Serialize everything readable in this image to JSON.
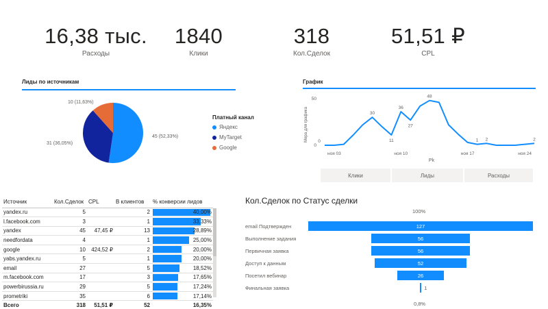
{
  "kpis": {
    "spend": {
      "value": "16,38 тыс.",
      "label": "Расходы"
    },
    "clicks": {
      "value": "1840",
      "label": "Клики"
    },
    "deals": {
      "value": "318",
      "label": "Кол.Сделок"
    },
    "cpl": {
      "value": "51,51 ₽",
      "label": "CPL"
    }
  },
  "pie_section": {
    "title": "Лиды по источникам",
    "legend_title": "Платный канал",
    "slices": [
      {
        "name": "Яндекс",
        "value": 45,
        "label": "45 (52,33%)",
        "color": "#118dff"
      },
      {
        "name": "MyTarget",
        "value": 31,
        "label": "31 (36,05%)",
        "color": "#12239e"
      },
      {
        "name": "Google",
        "value": 10,
        "label": "10 (11,63%)",
        "color": "#e66c37"
      }
    ]
  },
  "chart_section": {
    "title": "График",
    "buttons": [
      "Клики",
      "Лиды",
      "Расходы"
    ]
  },
  "chart_data": [
    {
      "type": "pie",
      "title": "Лиды по источникам",
      "legend_title": "Платный канал",
      "categories": [
        "Яндекс",
        "MyTarget",
        "Google"
      ],
      "values": [
        45,
        31,
        10
      ],
      "labels": [
        "45 (52,33%)",
        "31 (36,05%)",
        "10 (11,63%)"
      ],
      "colors": [
        "#118dff",
        "#12239e",
        "#e66c37"
      ],
      "legend": "right"
    },
    {
      "type": "line",
      "title": "График",
      "xlabel": "Рk",
      "ylabel": "Мера для графика",
      "x_ticks": [
        "ноя 03",
        "ноя 10",
        "ноя 17",
        "ноя 24"
      ],
      "y_ticks": [
        "0",
        "50"
      ],
      "ylim": [
        0,
        50
      ],
      "series": [
        {
          "values": [
            0,
            0,
            1,
            11,
            22,
            30,
            20,
            11,
            36,
            27,
            42,
            48,
            46,
            22,
            12,
            3,
            1,
            2,
            0,
            0,
            0,
            1,
            2
          ]
        }
      ],
      "data_labels": [
        {
          "index": 0,
          "text": "0"
        },
        {
          "index": 5,
          "text": "30"
        },
        {
          "index": 7,
          "text": "11"
        },
        {
          "index": 8,
          "text": "36"
        },
        {
          "index": 9,
          "text": "27"
        },
        {
          "index": 11,
          "text": "48"
        },
        {
          "index": 16,
          "text": "1"
        },
        {
          "index": 17,
          "text": "2"
        },
        {
          "index": 22,
          "text": "2"
        }
      ],
      "color": "#118dff"
    },
    {
      "type": "bar",
      "title": "Кол.Сделок по Статус сделки",
      "categories": [
        "email Подтвержден",
        "Выполнение задания",
        "Первичная заявка",
        "Доступ к данным",
        "Посетил вебинар",
        "Финальная заявка"
      ],
      "values": [
        127,
        56,
        56,
        52,
        26,
        1
      ],
      "top_label": "100%",
      "bottom_label": "0,8%",
      "color": "#118dff"
    }
  ],
  "table": {
    "headers": [
      "Источник",
      "Кол.Сделок",
      "CPL",
      "В клиентов",
      "% конверсии лидов"
    ],
    "rows": [
      {
        "source": "yandex.ru",
        "deals": "5",
        "cpl": "",
        "clients": "2",
        "conv": "40,00%",
        "conv_frac": 0.4
      },
      {
        "source": "l.facebook.com",
        "deals": "3",
        "cpl": "",
        "clients": "1",
        "conv": "33,33%",
        "conv_frac": 0.3333
      },
      {
        "source": "yandex",
        "deals": "45",
        "cpl": "47,45 ₽",
        "clients": "13",
        "conv": "28,89%",
        "conv_frac": 0.2889
      },
      {
        "source": "needfordata",
        "deals": "4",
        "cpl": "",
        "clients": "1",
        "conv": "25,00%",
        "conv_frac": 0.25
      },
      {
        "source": "google",
        "deals": "10",
        "cpl": "424,52 ₽",
        "clients": "2",
        "conv": "20,00%",
        "conv_frac": 0.2
      },
      {
        "source": "yabs.yandex.ru",
        "deals": "5",
        "cpl": "",
        "clients": "1",
        "conv": "20,00%",
        "conv_frac": 0.2
      },
      {
        "source": "email",
        "deals": "27",
        "cpl": "",
        "clients": "5",
        "conv": "18,52%",
        "conv_frac": 0.1852
      },
      {
        "source": "m.facebook.com",
        "deals": "17",
        "cpl": "",
        "clients": "3",
        "conv": "17,65%",
        "conv_frac": 0.1765
      },
      {
        "source": "powerbirussia.ru",
        "deals": "29",
        "cpl": "",
        "clients": "5",
        "conv": "17,24%",
        "conv_frac": 0.1724
      },
      {
        "source": "prometriki",
        "deals": "35",
        "cpl": "",
        "clients": "6",
        "conv": "17,14%",
        "conv_frac": 0.1714
      }
    ],
    "total": {
      "source": "Всего",
      "deals": "318",
      "cpl": "51,51 ₽",
      "clients": "52",
      "conv": "16,35%"
    }
  }
}
